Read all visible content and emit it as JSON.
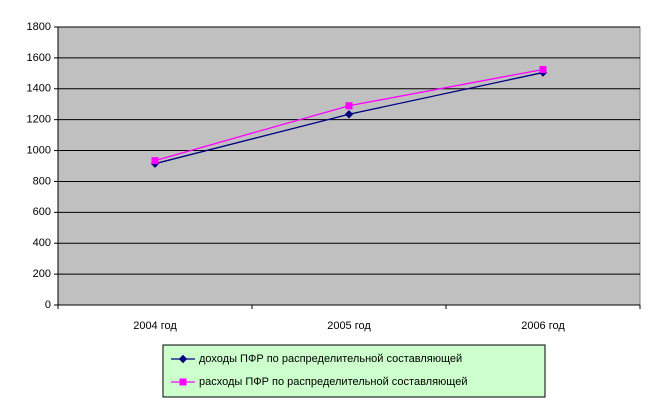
{
  "chart_data": {
    "type": "line",
    "categories": [
      "2004 год",
      "2005 год",
      "2006 год"
    ],
    "series": [
      {
        "name": "доходы ПФР по распределительной составляющей",
        "color": "#000080",
        "marker": "diamond",
        "values": [
          915,
          1235,
          1505
        ]
      },
      {
        "name": "расходы ПФР по распределительной составляющей",
        "color": "#ff00ff",
        "marker": "square",
        "values": [
          935,
          1290,
          1525
        ]
      }
    ],
    "ylim": [
      0,
      1800
    ],
    "yticks": [
      0,
      200,
      400,
      600,
      800,
      1000,
      1200,
      1400,
      1600,
      1800
    ],
    "grid": true,
    "legend": "bottom",
    "plot_background": "#c0c0c0"
  }
}
